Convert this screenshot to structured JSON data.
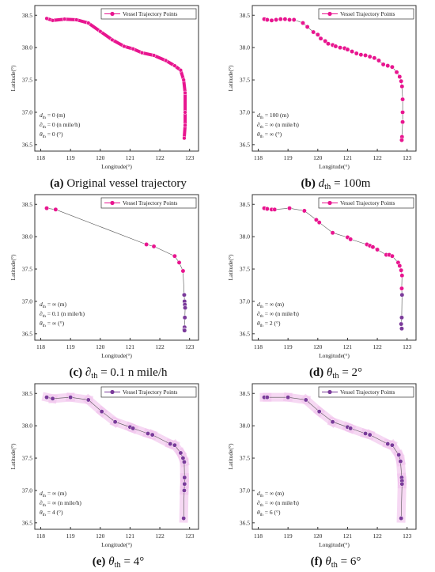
{
  "figure": {
    "panels": [
      {
        "caption_prefix": "(a)",
        "caption_text": "Original vessel trajectory",
        "caption_math": ""
      },
      {
        "caption_prefix": "(b)",
        "caption_text": "",
        "caption_math": "d_th = 100m"
      },
      {
        "caption_prefix": "(c)",
        "caption_text": "",
        "caption_math": "∂_th = 0.1 n mile/h"
      },
      {
        "caption_prefix": "(d)",
        "caption_text": "",
        "caption_math": "θ_th = 2°"
      },
      {
        "caption_prefix": "(e)",
        "caption_text": "",
        "caption_math": "θ_th = 4°"
      },
      {
        "caption_prefix": "(f)",
        "caption_text": "",
        "caption_math": "θ_th = 6°"
      }
    ]
  },
  "chart_data": [
    {
      "type": "line",
      "id": "a",
      "xlabel": "Longitude(°)",
      "ylabel": "Latitude(°)",
      "xlim": [
        117.8,
        123.3
      ],
      "ylim": [
        36.4,
        38.65
      ],
      "xticks": [
        "118",
        "119",
        "120",
        "121",
        "122",
        "123"
      ],
      "yticks": [
        "36.5",
        "37.0",
        "37.5",
        "38.0",
        "38.5"
      ],
      "legend": {
        "label": "Vessel Trajectory Points",
        "position": "top-right"
      },
      "annotations": [
        "d_th = 0 (m)",
        "∂_th = 0 (n mile/h)",
        "θ_th = 0 (°)"
      ],
      "marker_color": "#e8158f",
      "dense": true,
      "series": [
        {
          "name": "Vessel Trajectory Points",
          "x": [
            118.2,
            118.4,
            118.8,
            119.2,
            119.6,
            120.0,
            120.4,
            120.8,
            121.1,
            121.4,
            121.8,
            122.2,
            122.5,
            122.7,
            122.8,
            122.85,
            122.85,
            122.85,
            122.82
          ],
          "y": [
            38.45,
            38.42,
            38.44,
            38.43,
            38.38,
            38.25,
            38.12,
            38.02,
            37.98,
            37.92,
            37.88,
            37.8,
            37.72,
            37.65,
            37.5,
            37.3,
            37.0,
            36.8,
            36.6
          ]
        }
      ]
    },
    {
      "type": "line",
      "id": "b",
      "xlabel": "Longitude(°)",
      "ylabel": "Latitude(°)",
      "xlim": [
        117.8,
        123.3
      ],
      "ylim": [
        36.4,
        38.65
      ],
      "xticks": [
        "118",
        "119",
        "120",
        "121",
        "122",
        "123"
      ],
      "yticks": [
        "36.5",
        "37.0",
        "37.5",
        "38.0",
        "38.5"
      ],
      "legend": {
        "label": "Vessel Trajectory Points",
        "position": "top-right"
      },
      "annotations": [
        "d_th = 100 (m)",
        "∂_th = ∞ (n mile/h)",
        "θ_th = ∞ (°)"
      ],
      "marker_color": "#e8158f",
      "series": [
        {
          "name": "Vessel Trajectory Points",
          "x": [
            118.2,
            118.3,
            118.45,
            118.6,
            118.75,
            118.9,
            119.05,
            119.2,
            119.5,
            119.65,
            119.85,
            120.0,
            120.1,
            120.25,
            120.35,
            120.5,
            120.6,
            120.75,
            120.9,
            121.0,
            121.15,
            121.3,
            121.45,
            121.6,
            121.75,
            121.9,
            122.05,
            122.2,
            122.35,
            122.5,
            122.65,
            122.75,
            122.8,
            122.83,
            122.85,
            122.85,
            122.85,
            122.83,
            122.82
          ],
          "y": [
            38.44,
            38.43,
            38.42,
            38.43,
            38.44,
            38.44,
            38.43,
            38.43,
            38.38,
            38.32,
            38.24,
            38.2,
            38.14,
            38.1,
            38.06,
            38.04,
            38.02,
            38.0,
            37.99,
            37.97,
            37.94,
            37.91,
            37.89,
            37.88,
            37.86,
            37.84,
            37.8,
            37.74,
            37.72,
            37.7,
            37.62,
            37.55,
            37.48,
            37.4,
            37.2,
            37.0,
            36.85,
            36.62,
            36.57
          ]
        }
      ]
    },
    {
      "type": "line",
      "id": "c",
      "xlabel": "Longitude(°)",
      "ylabel": "Latitude(°)",
      "xlim": [
        117.8,
        123.3
      ],
      "ylim": [
        36.4,
        38.65
      ],
      "xticks": [
        "118",
        "119",
        "120",
        "121",
        "122",
        "123"
      ],
      "yticks": [
        "36.5",
        "37.0",
        "37.5",
        "38.0",
        "38.5"
      ],
      "legend": {
        "label": "Vessel Trajectory Points",
        "position": "top-right"
      },
      "annotations": [
        "d_th = ∞ (m)",
        "∂_th = 0.1 (n mile/h)",
        "θ_th = ∞ (°)"
      ],
      "marker_color": "#e8158f",
      "cluster_color": "#7a3a9a",
      "series": [
        {
          "name": "Vessel Trajectory Points",
          "x": [
            118.2,
            118.5,
            121.55,
            121.8,
            122.5,
            122.65,
            122.78,
            122.82,
            122.83,
            122.84,
            122.85,
            122.84,
            122.83,
            122.82,
            122.83
          ],
          "y": [
            38.44,
            38.42,
            37.88,
            37.85,
            37.7,
            37.6,
            37.47,
            37.1,
            37.0,
            36.95,
            36.9,
            36.75,
            36.6,
            36.56,
            36.55
          ]
        }
      ]
    },
    {
      "type": "line",
      "id": "d",
      "xlabel": "Longitude(°)",
      "ylabel": "Latitude(°)",
      "xlim": [
        117.8,
        123.3
      ],
      "ylim": [
        36.4,
        38.65
      ],
      "xticks": [
        "118",
        "119",
        "120",
        "121",
        "122",
        "123"
      ],
      "yticks": [
        "36.5",
        "37.0",
        "37.5",
        "38.0",
        "38.5"
      ],
      "legend": {
        "label": "Vessel Trajectory Points",
        "position": "top-right"
      },
      "annotations": [
        "d_th = ∞ (m)",
        "∂_th = ∞ (n mile/h)",
        "θ_th = 2 (°)"
      ],
      "marker_color": "#e8158f",
      "cluster_color": "#7a3a9a",
      "series": [
        {
          "name": "Vessel Trajectory Points",
          "x": [
            118.2,
            118.3,
            118.45,
            118.55,
            119.05,
            119.55,
            119.95,
            120.05,
            120.5,
            121.0,
            121.1,
            121.65,
            121.75,
            121.85,
            122.0,
            122.3,
            122.4,
            122.5,
            122.7,
            122.75,
            122.8,
            122.83,
            122.82,
            122.83,
            122.82,
            122.8,
            122.82
          ],
          "y": [
            38.44,
            38.43,
            38.42,
            38.42,
            38.44,
            38.4,
            38.26,
            38.22,
            38.06,
            37.99,
            37.96,
            37.88,
            37.86,
            37.84,
            37.8,
            37.72,
            37.72,
            37.7,
            37.6,
            37.55,
            37.48,
            37.4,
            37.2,
            37.1,
            36.75,
            36.65,
            36.58
          ]
        }
      ]
    },
    {
      "type": "line",
      "id": "e",
      "xlabel": "Longitude(°)",
      "ylabel": "Latitude(°)",
      "xlim": [
        117.8,
        123.3
      ],
      "ylim": [
        36.4,
        38.65
      ],
      "xticks": [
        "118",
        "119",
        "120",
        "121",
        "122",
        "123"
      ],
      "yticks": [
        "36.5",
        "37.0",
        "37.5",
        "38.0",
        "38.5"
      ],
      "legend": {
        "label": "Vessel Trajectory Points",
        "position": "top-right"
      },
      "annotations": [
        "d_th = ∞ (m)",
        "∂_th = ∞ (n mile/h)",
        "θ_th = 4 (°)"
      ],
      "marker_color": "#7a3a9a",
      "highlight": true,
      "series": [
        {
          "name": "Vessel Trajectory Points",
          "x": [
            118.2,
            118.4,
            119.0,
            119.6,
            120.05,
            120.5,
            121.0,
            121.1,
            121.6,
            121.75,
            122.35,
            122.5,
            122.7,
            122.78,
            122.82,
            122.83,
            122.83,
            122.82,
            122.8
          ],
          "y": [
            38.44,
            38.42,
            38.44,
            38.4,
            38.22,
            38.06,
            37.98,
            37.96,
            37.88,
            37.86,
            37.72,
            37.7,
            37.58,
            37.5,
            37.44,
            37.2,
            37.1,
            37.0,
            36.57
          ]
        }
      ]
    },
    {
      "type": "line",
      "id": "f",
      "xlabel": "Longitude(°)",
      "ylabel": "Latitude(°)",
      "xlim": [
        117.8,
        123.3
      ],
      "ylim": [
        36.4,
        38.65
      ],
      "xticks": [
        "118",
        "119",
        "120",
        "121",
        "122",
        "123"
      ],
      "yticks": [
        "36.5",
        "37.0",
        "37.5",
        "38.0",
        "38.5"
      ],
      "legend": {
        "label": "Vessel Trajectory Points",
        "position": "top-right"
      },
      "annotations": [
        "d_th = ∞ (m)",
        "∂_th = ∞ (n mile/h)",
        "θ_th = 6 (°)"
      ],
      "marker_color": "#7a3a9a",
      "highlight": true,
      "series": [
        {
          "name": "Vessel Trajectory Points",
          "x": [
            118.2,
            118.3,
            119.0,
            119.6,
            120.05,
            120.5,
            121.0,
            121.1,
            121.6,
            121.75,
            122.35,
            122.5,
            122.72,
            122.78,
            122.82,
            122.83,
            122.83,
            122.8
          ],
          "y": [
            38.44,
            38.44,
            38.44,
            38.4,
            38.22,
            38.06,
            37.98,
            37.96,
            37.88,
            37.86,
            37.72,
            37.7,
            37.55,
            37.45,
            37.2,
            37.15,
            37.1,
            36.57
          ]
        }
      ]
    }
  ]
}
